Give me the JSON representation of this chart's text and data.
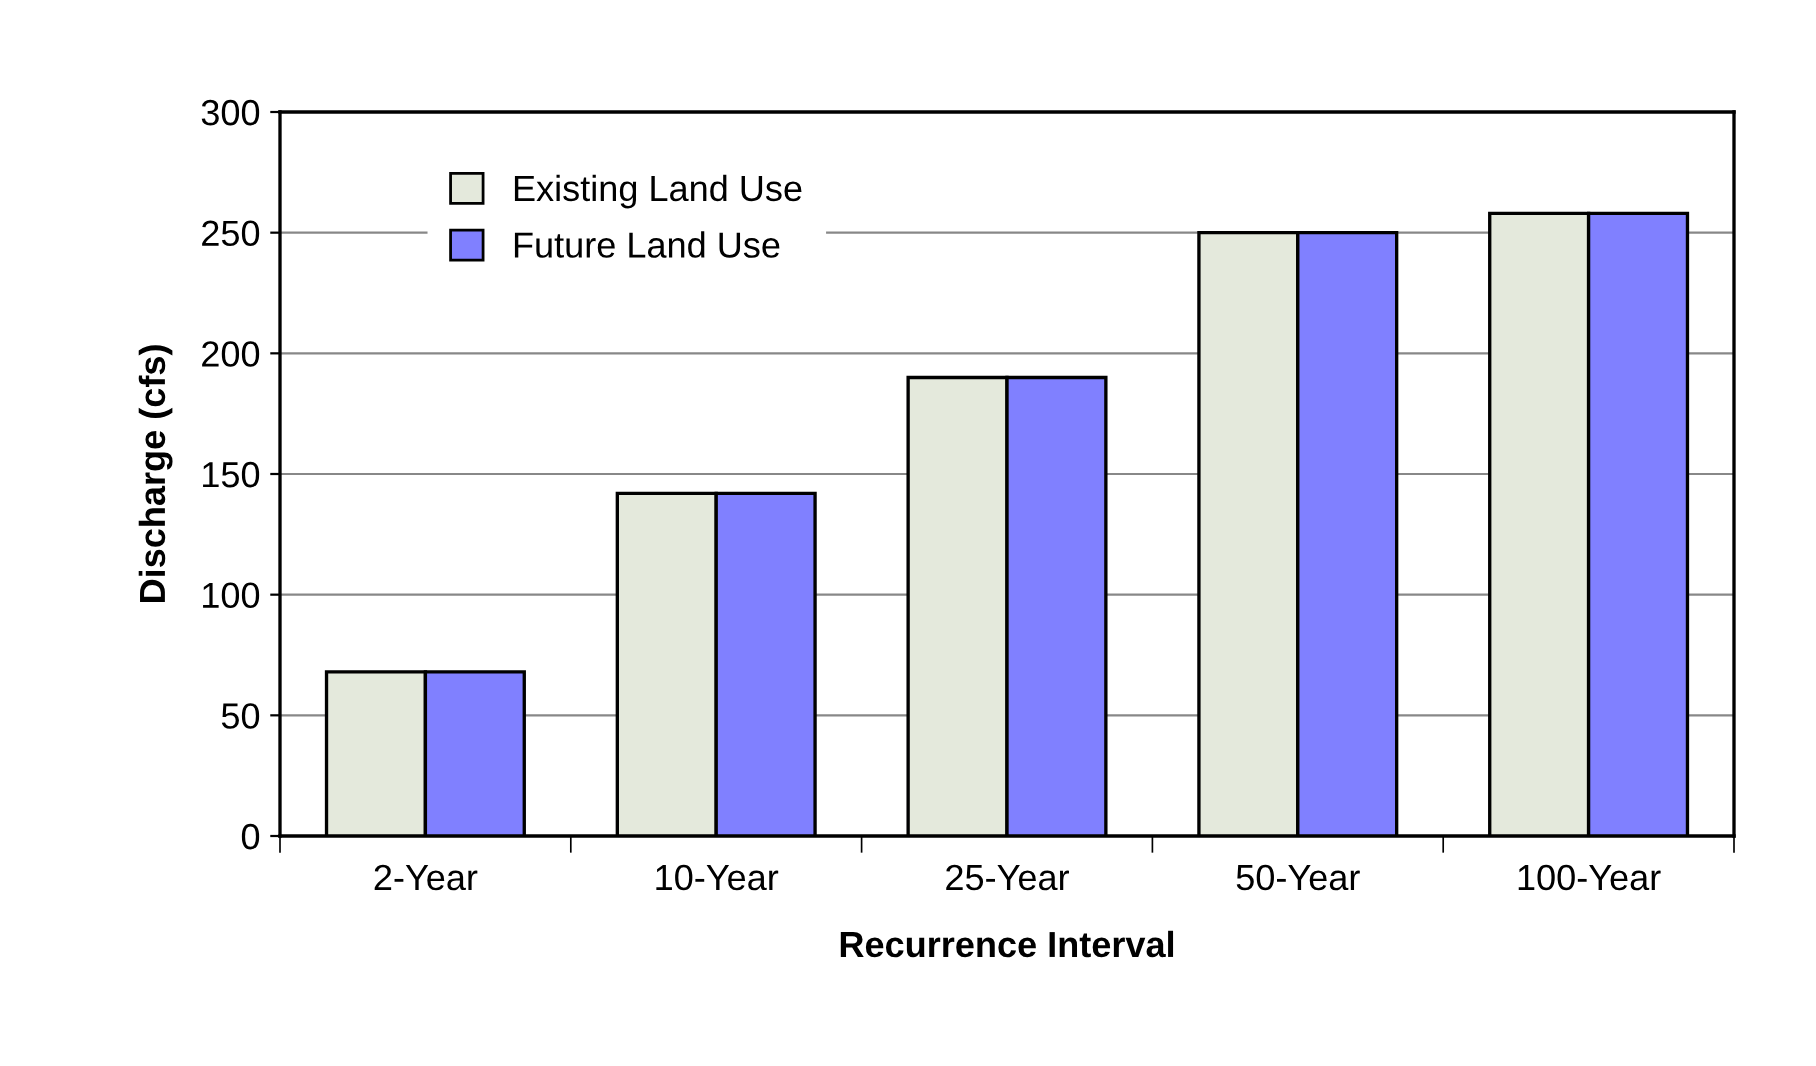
{
  "chart_data": {
    "type": "bar",
    "xlabel": "Recurrence Interval",
    "ylabel": "Discharge (cfs)",
    "categories": [
      "2-Year",
      "10-Year",
      "25-Year",
      "50-Year",
      "100-Year"
    ],
    "series": [
      {
        "name": "Existing Land Use",
        "color": "#e4e9dc",
        "values": [
          68,
          142,
          190,
          250,
          258
        ]
      },
      {
        "name": "Future Land Use",
        "color": "#8080ff",
        "values": [
          68,
          142,
          190,
          250,
          258
        ]
      }
    ],
    "ylim": [
      0,
      300
    ],
    "yticks": [
      0,
      50,
      100,
      150,
      200,
      250,
      300
    ],
    "grid": "y",
    "legend": "top left"
  }
}
